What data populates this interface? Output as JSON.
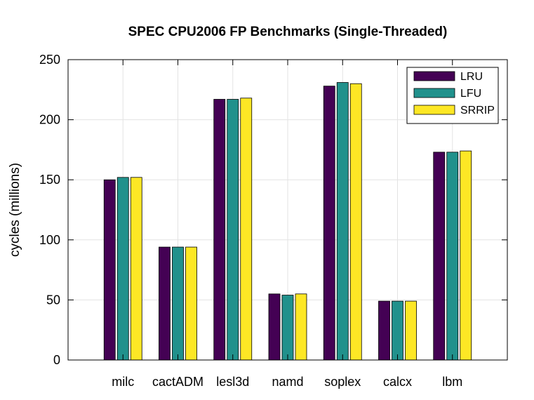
{
  "chart_data": {
    "type": "bar",
    "title": "SPEC CPU2006 FP Benchmarks (Single-Threaded)",
    "xlabel": "",
    "ylabel": "cycles (millions)",
    "categories": [
      "milc",
      "cactADM",
      "lesl3d",
      "namd",
      "soplex",
      "calcx",
      "lbm"
    ],
    "series": [
      {
        "name": "LRU",
        "color": "#440154",
        "values": [
          150,
          94,
          217,
          55,
          228,
          49,
          173
        ]
      },
      {
        "name": "LFU",
        "color": "#21918c",
        "values": [
          152,
          94,
          217,
          54,
          231,
          49,
          173
        ]
      },
      {
        "name": "SRRIP",
        "color": "#fde725",
        "values": [
          152,
          94,
          218,
          55,
          230,
          49,
          174
        ]
      }
    ],
    "ylim": [
      0,
      250
    ],
    "yticks": [
      0,
      50,
      100,
      150,
      200,
      250
    ],
    "grid": true,
    "legend_position": "top-right"
  }
}
